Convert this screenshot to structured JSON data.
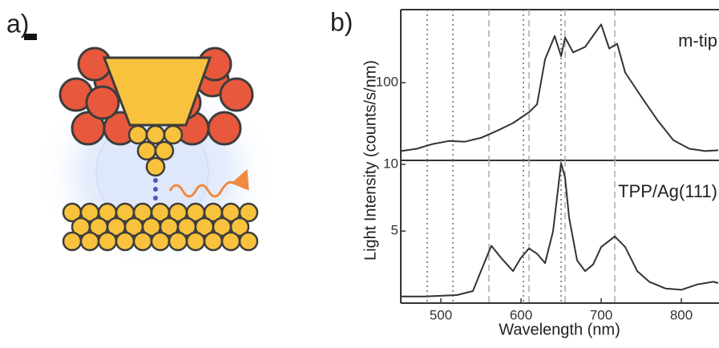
{
  "figure": {
    "panel_a_label": "a)",
    "panel_b_label": "b)",
    "y_label": "Light Intensity (counts/s/nm)"
  },
  "chart_data": [
    {
      "type": "line",
      "label": "m-tip",
      "x": [
        450,
        470,
        490,
        510,
        530,
        550,
        570,
        590,
        610,
        620,
        630,
        642,
        650,
        655,
        665,
        680,
        700,
        710,
        720,
        730,
        750,
        770,
        790,
        810,
        830,
        846
      ],
      "series": [
        {
          "color": "#333333",
          "values": [
            12,
            15,
            21,
            25,
            24,
            29,
            38,
            48,
            62,
            72,
            130,
            160,
            134,
            158,
            139,
            146,
            175,
            144,
            150,
            113,
            82,
            52,
            26,
            15,
            12,
            13
          ]
        }
      ],
      "xlim": [
        450,
        847
      ],
      "ylim": [
        0,
        194
      ],
      "yticks": [
        100
      ],
      "dotted_lines": [
        483,
        515,
        603,
        650
      ],
      "dashed_lines": [
        560,
        610,
        655,
        717
      ]
    },
    {
      "type": "line",
      "label": "TPP/Ag(111)",
      "x_label": "Wavelength (nm)",
      "x": [
        450,
        480,
        520,
        540,
        550,
        563,
        575,
        590,
        600,
        610,
        620,
        630,
        640,
        650,
        655,
        660,
        670,
        680,
        690,
        700,
        717,
        730,
        745,
        760,
        780,
        800,
        820,
        840,
        846
      ],
      "series": [
        {
          "color": "#333333",
          "values": [
            0.1,
            0.1,
            0.2,
            0.5,
            2,
            3.9,
            3,
            2,
            3,
            3.7,
            3.3,
            2.6,
            5,
            10.1,
            9,
            6,
            2.8,
            2,
            2.5,
            3.8,
            4.6,
            3.8,
            2,
            1.2,
            0.7,
            0.6,
            1.0,
            1.2,
            1.1
          ]
        }
      ],
      "xlim": [
        450,
        847
      ],
      "ylim": [
        -0.4,
        10.3
      ],
      "xticks": [
        500,
        600,
        700,
        800
      ],
      "yticks": [
        5,
        10
      ],
      "dotted_lines": [
        483,
        515,
        603,
        650
      ],
      "dashed_lines": [
        560,
        610,
        655,
        717
      ]
    }
  ]
}
